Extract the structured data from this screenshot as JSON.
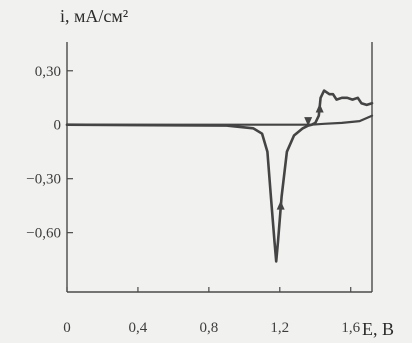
{
  "chart_data": {
    "type": "line",
    "title": "",
    "ylabel": "i, мА/см²",
    "xlabel": "E, В",
    "xlim": [
      0,
      1.72
    ],
    "ylim": [
      -0.93,
      0.46
    ],
    "x_ticks": [
      {
        "value": 0,
        "label": "0"
      },
      {
        "value": 0.4,
        "label": "0,4"
      },
      {
        "value": 0.8,
        "label": "0,8"
      },
      {
        "value": 1.2,
        "label": "1,2"
      },
      {
        "value": 1.6,
        "label": "1,6"
      }
    ],
    "y_ticks": [
      {
        "value": 0.3,
        "label": "0,30"
      },
      {
        "value": 0,
        "label": "0"
      },
      {
        "value": -0.3,
        "label": "−0,30"
      },
      {
        "value": -0.6,
        "label": "−0,60"
      }
    ],
    "grid": false,
    "line_color": "#444444",
    "series": [
      {
        "values": [
          [
            0.0,
            0.0
          ],
          [
            0.9,
            -0.005
          ],
          [
            1.05,
            -0.02
          ],
          [
            1.1,
            -0.05
          ],
          [
            1.13,
            -0.15
          ],
          [
            1.15,
            -0.4
          ],
          [
            1.17,
            -0.65
          ],
          [
            1.18,
            -0.76
          ],
          [
            1.19,
            -0.65
          ],
          [
            1.21,
            -0.4
          ],
          [
            1.24,
            -0.15
          ],
          [
            1.28,
            -0.06
          ],
          [
            1.33,
            -0.02
          ],
          [
            1.36,
            -0.005
          ],
          [
            1.38,
            0.0
          ],
          [
            1.4,
            0.01
          ],
          [
            1.42,
            0.05
          ],
          [
            1.43,
            0.15
          ],
          [
            1.45,
            0.19
          ],
          [
            1.48,
            0.17
          ],
          [
            1.5,
            0.17
          ],
          [
            1.52,
            0.14
          ],
          [
            1.55,
            0.15
          ],
          [
            1.58,
            0.15
          ],
          [
            1.61,
            0.14
          ],
          [
            1.64,
            0.15
          ],
          [
            1.66,
            0.12
          ],
          [
            1.69,
            0.11
          ],
          [
            1.72,
            0.12
          ]
        ]
      },
      {
        "values": [
          [
            1.72,
            0.05
          ],
          [
            1.65,
            0.02
          ],
          [
            1.55,
            0.01
          ],
          [
            1.45,
            0.005
          ],
          [
            1.38,
            0.0
          ],
          [
            0.0,
            0.0
          ]
        ]
      }
    ],
    "arrows": [
      {
        "x": 1.425,
        "y": 0.09,
        "direction": "up"
      },
      {
        "x": 1.36,
        "y": 0.02,
        "direction": "down"
      },
      {
        "x": 1.205,
        "y": -0.45,
        "direction": "up"
      }
    ]
  }
}
